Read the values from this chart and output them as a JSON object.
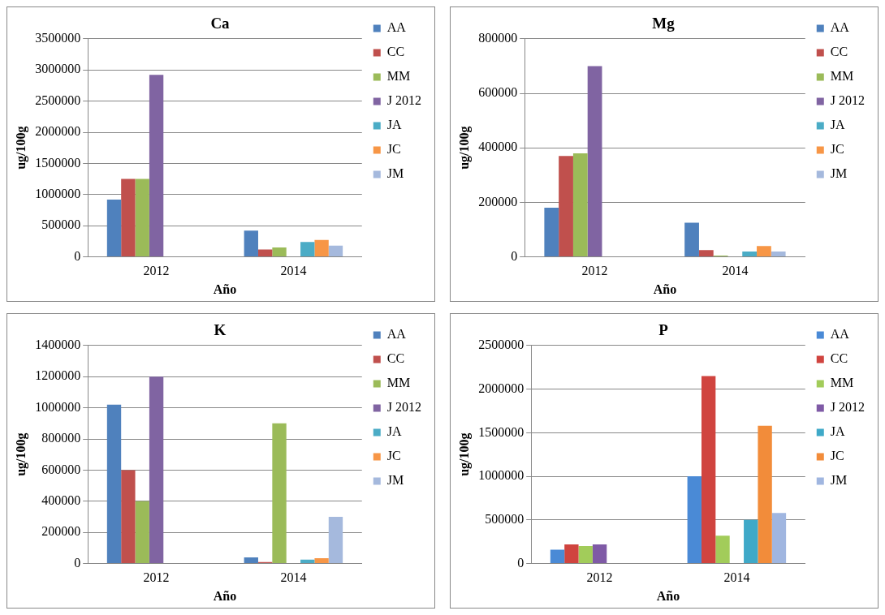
{
  "chart_data": [
    {
      "type": "bar",
      "title": "Ca",
      "xlabel": "Año",
      "ylabel": "ug/100g",
      "categories": [
        "2012",
        "2014"
      ],
      "ylim": [
        0,
        3500000
      ],
      "yticks": [
        0,
        500000,
        1000000,
        1500000,
        2000000,
        2500000,
        3000000,
        3500000
      ],
      "grid": "y",
      "legend": "right",
      "series": [
        {
          "name": "AA",
          "color": "#4f81bd",
          "values": [
            920000,
            420000
          ]
        },
        {
          "name": "CC",
          "color": "#c0504d",
          "values": [
            1250000,
            120000
          ]
        },
        {
          "name": "MM",
          "color": "#9bbb59",
          "values": [
            1250000,
            150000
          ]
        },
        {
          "name": "J 2012",
          "color": "#8064a2",
          "values": [
            2920000,
            null
          ]
        },
        {
          "name": "JA",
          "color": "#4bacc6",
          "values": [
            null,
            240000
          ]
        },
        {
          "name": "JC",
          "color": "#f79646",
          "values": [
            null,
            270000
          ]
        },
        {
          "name": "JM",
          "color": "#a5b9dd",
          "values": [
            null,
            180000
          ]
        }
      ]
    },
    {
      "type": "bar",
      "title": "Mg",
      "xlabel": "Año",
      "ylabel": "ug/100g",
      "categories": [
        "2012",
        "2014"
      ],
      "ylim": [
        0,
        800000
      ],
      "yticks": [
        0,
        200000,
        400000,
        600000,
        800000
      ],
      "grid": "y",
      "legend": "right",
      "series": [
        {
          "name": "AA",
          "color": "#4f81bd",
          "values": [
            180000,
            125000
          ]
        },
        {
          "name": "CC",
          "color": "#c0504d",
          "values": [
            370000,
            25000
          ]
        },
        {
          "name": "MM",
          "color": "#9bbb59",
          "values": [
            380000,
            5000
          ]
        },
        {
          "name": "J 2012",
          "color": "#8064a2",
          "values": [
            700000,
            null
          ]
        },
        {
          "name": "JA",
          "color": "#4bacc6",
          "values": [
            null,
            20000
          ]
        },
        {
          "name": "JC",
          "color": "#f79646",
          "values": [
            null,
            40000
          ]
        },
        {
          "name": "JM",
          "color": "#a5b9dd",
          "values": [
            null,
            20000
          ]
        }
      ]
    },
    {
      "type": "bar",
      "title": "K",
      "xlabel": "Año",
      "ylabel": "ug/100g",
      "categories": [
        "2012",
        "2014"
      ],
      "ylim": [
        0,
        1400000
      ],
      "yticks": [
        0,
        200000,
        400000,
        600000,
        800000,
        1000000,
        1200000,
        1400000
      ],
      "grid": "y",
      "legend": "right",
      "series": [
        {
          "name": "AA",
          "color": "#4f81bd",
          "values": [
            1020000,
            40000
          ]
        },
        {
          "name": "CC",
          "color": "#c0504d",
          "values": [
            600000,
            10000
          ]
        },
        {
          "name": "MM",
          "color": "#9bbb59",
          "values": [
            400000,
            900000
          ]
        },
        {
          "name": "J 2012",
          "color": "#8064a2",
          "values": [
            1200000,
            null
          ]
        },
        {
          "name": "JA",
          "color": "#4bacc6",
          "values": [
            null,
            25000
          ]
        },
        {
          "name": "JC",
          "color": "#f79646",
          "values": [
            null,
            35000
          ]
        },
        {
          "name": "JM",
          "color": "#a5b9dd",
          "values": [
            null,
            300000
          ]
        }
      ]
    },
    {
      "type": "bar",
      "title": "P",
      "xlabel": "Año",
      "ylabel": "ug/100g",
      "categories": [
        "2012",
        "2014"
      ],
      "ylim": [
        0,
        2500000
      ],
      "yticks": [
        0,
        500000,
        1000000,
        1500000,
        2000000,
        2500000
      ],
      "grid": "y",
      "legend": "right",
      "series": [
        {
          "name": "AA",
          "color": "#4a8ad6",
          "values": [
            160000,
            1000000
          ]
        },
        {
          "name": "CC",
          "color": "#d0443f",
          "values": [
            220000,
            2150000
          ]
        },
        {
          "name": "MM",
          "color": "#a2cc5a",
          "values": [
            200000,
            320000
          ]
        },
        {
          "name": "J 2012",
          "color": "#7f5aa6",
          "values": [
            220000,
            null
          ]
        },
        {
          "name": "JA",
          "color": "#3fa9c8",
          "values": [
            null,
            500000
          ]
        },
        {
          "name": "JC",
          "color": "#f28c3a",
          "values": [
            null,
            1580000
          ]
        },
        {
          "name": "JM",
          "color": "#a0b6e0",
          "values": [
            null,
            580000
          ]
        }
      ]
    }
  ]
}
